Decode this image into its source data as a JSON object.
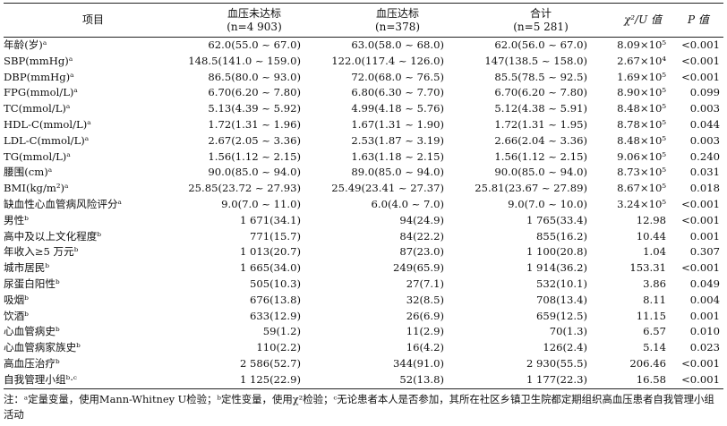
{
  "columns": {
    "item": "项目",
    "g1_title": "血压未达标",
    "g1_n": "(n=4 903)",
    "g2_title": "血压达标",
    "g2_n": "(n=378)",
    "g3_title": "合计",
    "g3_n": "(n=5 281)",
    "chi": "χ²/U 值",
    "p": "P 值"
  },
  "rows": [
    {
      "item": "年龄(岁)ᵃ",
      "g1": "62.0(55.0 ~ 67.0)",
      "g2": "63.0(58.0 ~ 68.0)",
      "g3": "62.0(56.0 ~ 67.0)",
      "chi": "8.09×10⁵",
      "p": "<0.001"
    },
    {
      "item": "SBP(mmHg)ᵃ",
      "g1": "148.5(141.0 ~ 159.0)",
      "g2": "122.0(117.4 ~ 126.0)",
      "g3": "147(138.5 ~ 158.0)",
      "chi": "2.67×10⁴",
      "p": "<0.001"
    },
    {
      "item": "DBP(mmHg)ᵃ",
      "g1": "86.5(80.0 ~ 93.0)",
      "g2": "72.0(68.0 ~ 76.5)",
      "g3": "85.5(78.5 ~ 92.5)",
      "chi": "1.69×10⁵",
      "p": "<0.001"
    },
    {
      "item": "FPG(mmol/L)ᵃ",
      "g1": "6.70(6.20 ~ 7.80)",
      "g2": "6.80(6.30 ~ 7.70)",
      "g3": "6.70(6.20 ~ 7.80)",
      "chi": "8.90×10⁵",
      "p": "0.099"
    },
    {
      "item": "TC(mmol/L)ᵃ",
      "g1": "5.13(4.39 ~ 5.92)",
      "g2": "4.99(4.18 ~ 5.76)",
      "g3": "5.12(4.38 ~ 5.91)",
      "chi": "8.48×10⁵",
      "p": "0.003"
    },
    {
      "item": "HDL-C(mmol/L)ᵃ",
      "g1": "1.72(1.31 ~ 1.96)",
      "g2": "1.67(1.31 ~ 1.90)",
      "g3": "1.72(1.31 ~ 1.95)",
      "chi": "8.78×10⁵",
      "p": "0.044"
    },
    {
      "item": "LDL-C(mmol/L)ᵃ",
      "g1": "2.67(2.05 ~ 3.36)",
      "g2": "2.53(1.87 ~ 3.19)",
      "g3": "2.66(2.04 ~ 3.36)",
      "chi": "8.48×10⁵",
      "p": "0.003"
    },
    {
      "item": "TG(mmol/L)ᵃ",
      "g1": "1.56(1.12 ~ 2.15)",
      "g2": "1.63(1.18 ~ 2.15)",
      "g3": "1.56(1.12 ~ 2.15)",
      "chi": "9.06×10⁵",
      "p": "0.240"
    },
    {
      "item": "腰围(cm)ᵃ",
      "g1": "90.0(85.0 ~ 94.0)",
      "g2": "89.0(85.0 ~ 94.0)",
      "g3": "90.0(85.0 ~ 94.0)",
      "chi": "8.73×10⁵",
      "p": "0.031"
    },
    {
      "item": "BMI(kg/m²)ᵃ",
      "g1": "25.85(23.72 ~ 27.93)",
      "g2": "25.49(23.41 ~ 27.37)",
      "g3": "25.81(23.67 ~ 27.89)",
      "chi": "8.67×10⁵",
      "p": "0.018"
    },
    {
      "item": "缺血性心血管病风险评分ᵃ",
      "g1": "9.0(7.0 ~ 11.0)",
      "g2": "6.0(4.0 ~ 7.0)",
      "g3": "9.0(7.0 ~ 10.0)",
      "chi": "3.24×10⁵",
      "p": "<0.001"
    },
    {
      "item": "男性ᵇ",
      "g1": "1 671(34.1)",
      "g2": "94(24.9)",
      "g3": "1 765(33.4)",
      "chi": "12.98",
      "p": "<0.001"
    },
    {
      "item": "高中及以上文化程度ᵇ",
      "g1": "771(15.7)",
      "g2": "84(22.2)",
      "g3": "855(16.2)",
      "chi": "10.44",
      "p": "0.001"
    },
    {
      "item": "年收入≥5 万元ᵇ",
      "g1": "1 013(20.7)",
      "g2": "87(23.0)",
      "g3": "1 100(20.8)",
      "chi": "1.04",
      "p": "0.307"
    },
    {
      "item": "城市居民ᵇ",
      "g1": "1 665(34.0)",
      "g2": "249(65.9)",
      "g3": "1 914(36.2)",
      "chi": "153.31",
      "p": "<0.001"
    },
    {
      "item": "尿蛋白阳性ᵇ",
      "g1": "505(10.3)",
      "g2": "27(7.1)",
      "g3": "532(10.1)",
      "chi": "3.86",
      "p": "0.049"
    },
    {
      "item": "吸烟ᵇ",
      "g1": "676(13.8)",
      "g2": "32(8.5)",
      "g3": "708(13.4)",
      "chi": "8.11",
      "p": "0.004"
    },
    {
      "item": "饮酒ᵇ",
      "g1": "633(12.9)",
      "g2": "26(6.9)",
      "g3": "659(12.5)",
      "chi": "11.15",
      "p": "0.001"
    },
    {
      "item": "心血管病史ᵇ",
      "g1": "59(1.2)",
      "g2": "11(2.9)",
      "g3": "70(1.3)",
      "chi": "6.57",
      "p": "0.010"
    },
    {
      "item": "心血管病家族史ᵇ",
      "g1": "110(2.2)",
      "g2": "16(4.2)",
      "g3": "126(2.4)",
      "chi": "5.14",
      "p": "0.023"
    },
    {
      "item": "高血压治疗ᵇ",
      "g1": "2 586(52.7)",
      "g2": "344(91.0)",
      "g3": "2 930(55.5)",
      "chi": "206.46",
      "p": "<0.001"
    },
    {
      "item": "自我管理小组ᵇ·ᶜ",
      "g1": "1 125(22.9)",
      "g2": "52(13.8)",
      "g3": "1 177(22.3)",
      "chi": "16.58",
      "p": "<0.001"
    }
  ],
  "note": "注：ᵃ定量变量，使用Mann-Whitney U检验；ᵇ定性变量，使用χ²检验；ᶜ无论患者本人是否参加，其所在社区乡镇卫生院都定期组织高血压患者自我管理小组活动"
}
